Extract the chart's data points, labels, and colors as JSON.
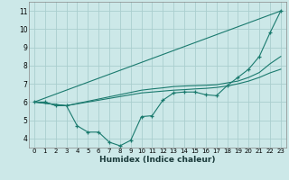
{
  "xlabel": "Humidex (Indice chaleur)",
  "bg_color": "#cce8e8",
  "grid_color": "#aacece",
  "line_color": "#1a7a6e",
  "xlim": [
    -0.5,
    23.5
  ],
  "ylim": [
    3.5,
    11.5
  ],
  "xticks": [
    0,
    1,
    2,
    3,
    4,
    5,
    6,
    7,
    8,
    9,
    10,
    11,
    12,
    13,
    14,
    15,
    16,
    17,
    18,
    19,
    20,
    21,
    22,
    23
  ],
  "yticks": [
    4,
    5,
    6,
    7,
    8,
    9,
    10,
    11
  ],
  "line1_x": [
    0,
    1,
    2,
    3,
    4,
    5,
    6,
    7,
    8,
    9,
    10,
    11,
    12,
    13,
    14,
    15,
    16,
    17,
    18,
    19,
    20,
    21,
    22,
    23
  ],
  "line1_y": [
    6.0,
    6.0,
    5.8,
    5.8,
    4.7,
    4.35,
    4.35,
    3.8,
    3.6,
    3.9,
    5.2,
    5.25,
    6.1,
    6.5,
    6.55,
    6.55,
    6.4,
    6.35,
    6.9,
    7.35,
    7.8,
    8.5,
    9.8,
    11.0
  ],
  "line2_x": [
    0,
    23
  ],
  "line2_y": [
    6.0,
    11.0
  ],
  "line3_x": [
    0,
    3,
    10,
    11,
    12,
    13,
    14,
    15,
    16,
    17,
    18,
    19,
    20,
    21,
    22,
    23
  ],
  "line3_y": [
    6.0,
    5.8,
    6.5,
    6.55,
    6.6,
    6.65,
    6.68,
    6.72,
    6.75,
    6.8,
    6.88,
    7.0,
    7.15,
    7.35,
    7.6,
    7.8
  ],
  "line4_x": [
    0,
    3,
    10,
    11,
    12,
    13,
    14,
    15,
    16,
    17,
    18,
    19,
    20,
    21,
    22,
    23
  ],
  "line4_y": [
    6.0,
    5.8,
    6.65,
    6.72,
    6.78,
    6.85,
    6.88,
    6.9,
    6.92,
    6.95,
    7.05,
    7.15,
    7.35,
    7.62,
    8.1,
    8.5
  ]
}
